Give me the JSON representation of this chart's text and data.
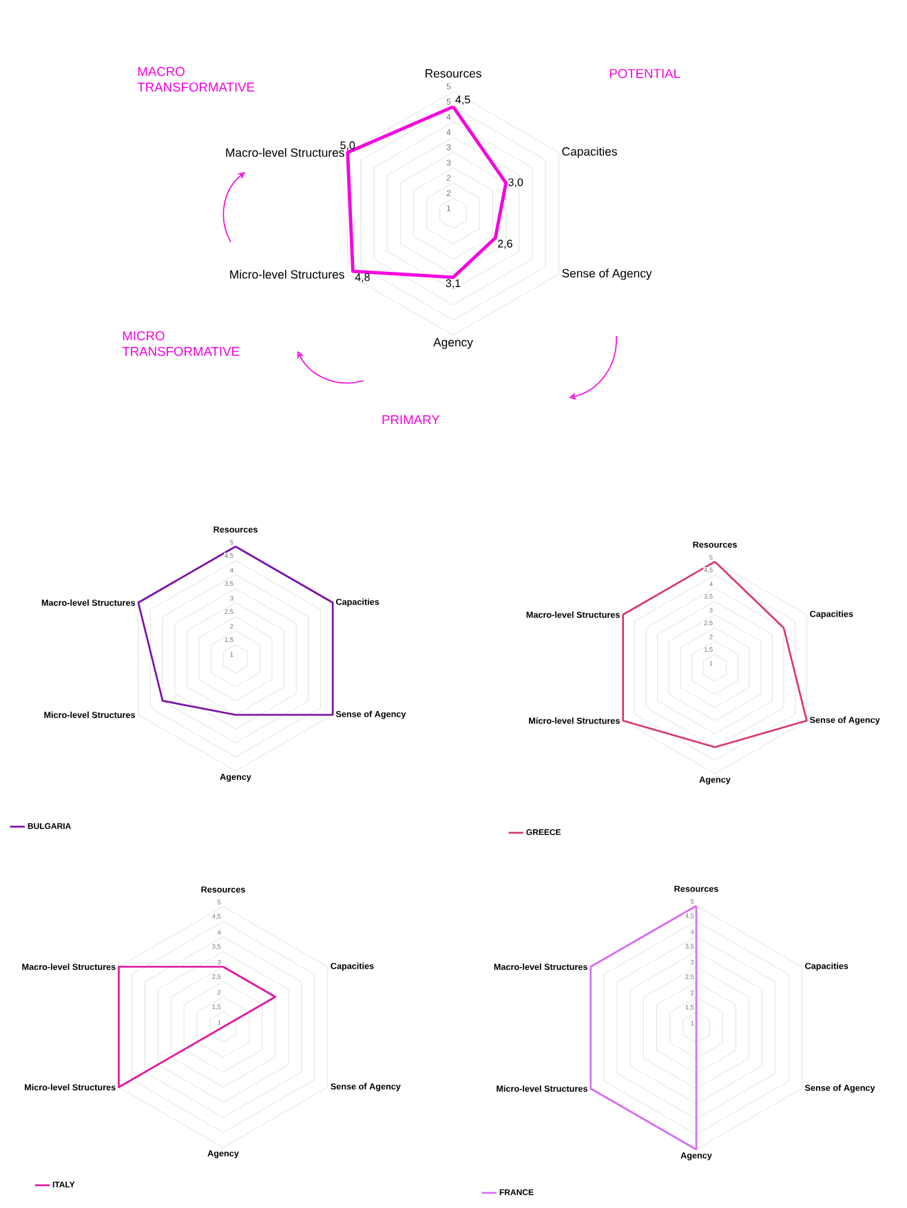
{
  "chart_data": [
    {
      "type": "radar",
      "categories": [
        "Resources",
        "Capacities",
        "Sense of Agency",
        "Agency",
        "Micro-level Structures",
        "Macro-level Structures"
      ],
      "series": [
        {
          "color": "#f500e0",
          "values": [
            4.5,
            3.0,
            2.6,
            3.1,
            4.8,
            5.0
          ],
          "value_labels": [
            "4,5",
            "3,0",
            "2,6",
            "3,1",
            "4,8",
            "5,0"
          ]
        }
      ],
      "ylim": [
        1,
        5
      ],
      "yticks": [
        1,
        {
          "value": 1.5,
          "label": "2"
        },
        2,
        {
          "value": 2.5,
          "label": "3"
        },
        3,
        {
          "value": 3.5,
          "label": "4"
        },
        4,
        {
          "value": 4.5,
          "label": "5"
        },
        5
      ],
      "grid": true,
      "annotations": [
        "MACRO TRANSFORMATIVE",
        "POTENTIAL",
        "MICRO TRANSFORMATIVE",
        "PRIMARY"
      ]
    },
    {
      "type": "radar",
      "categories": [
        "Resources",
        "Capacities",
        "Sense of Agency",
        "Agency",
        "Micro-level Structures",
        "Macro-level Structures"
      ],
      "series": [
        {
          "name": "BULGARIA",
          "color": "#7a10a8",
          "values": [
            5,
            5,
            5,
            3,
            4,
            5
          ]
        }
      ],
      "ylim": [
        1,
        5
      ],
      "yticks": [
        1,
        {
          "value": 1.5,
          "label": "1,5"
        },
        2,
        {
          "value": 2.5,
          "label": "2,5"
        },
        3,
        {
          "value": 3.5,
          "label": "3,5"
        },
        4,
        {
          "value": 4.5,
          "label": "4,5"
        },
        5
      ],
      "grid": true,
      "legend": "bottom left"
    },
    {
      "type": "radar",
      "categories": [
        "Resources",
        "Capacities",
        "Sense of Agency",
        "Agency",
        "Micro-level Structures",
        "Macro-level Structures"
      ],
      "series": [
        {
          "name": "GREECE",
          "color": "#d63a66",
          "values": [
            5,
            4,
            5,
            4,
            5,
            5
          ]
        }
      ],
      "ylim": [
        1,
        5
      ],
      "yticks": [
        1,
        {
          "value": 1.5,
          "label": "1,5"
        },
        2,
        {
          "value": 2.5,
          "label": "2,5"
        },
        3,
        {
          "value": 3.5,
          "label": "3,5"
        },
        4,
        {
          "value": 4.5,
          "label": "4,5"
        },
        5
      ],
      "grid": true,
      "legend": "bottom left"
    },
    {
      "type": "radar",
      "categories": [
        "Resources",
        "Capacities",
        "Sense of Agency",
        "Agency",
        "Micro-level Structures",
        "Macro-level Structures"
      ],
      "series": [
        {
          "name": "ITALY",
          "color": "#e0159e",
          "values": [
            3,
            3,
            null,
            null,
            5,
            5
          ]
        }
      ],
      "ylim": [
        1,
        5
      ],
      "yticks": [
        1,
        {
          "value": 1.5,
          "label": "1,5"
        },
        2,
        {
          "value": 2.5,
          "label": "2,5"
        },
        3,
        {
          "value": 3.5,
          "label": "3,5"
        },
        4,
        {
          "value": 4.5,
          "label": "4,5"
        },
        5
      ],
      "grid": true,
      "legend": "bottom left"
    },
    {
      "type": "radar",
      "categories": [
        "Resources",
        "Capacities",
        "Sense of Agency",
        "Agency",
        "Micro-level Structures",
        "Macro-level Structures"
      ],
      "series": [
        {
          "name": "FRANCE",
          "color": "#d86cf5",
          "values": [
            5,
            null,
            null,
            5,
            5,
            5
          ]
        }
      ],
      "ylim": [
        1,
        5
      ],
      "yticks": [
        1,
        {
          "value": 1.5,
          "label": "1,5"
        },
        2,
        {
          "value": 2.5,
          "label": "2,5"
        },
        3,
        {
          "value": 3.5,
          "label": "3,5"
        },
        4,
        {
          "value": 4.5,
          "label": "4,5"
        },
        5
      ],
      "grid": true,
      "legend": "bottom left"
    }
  ]
}
